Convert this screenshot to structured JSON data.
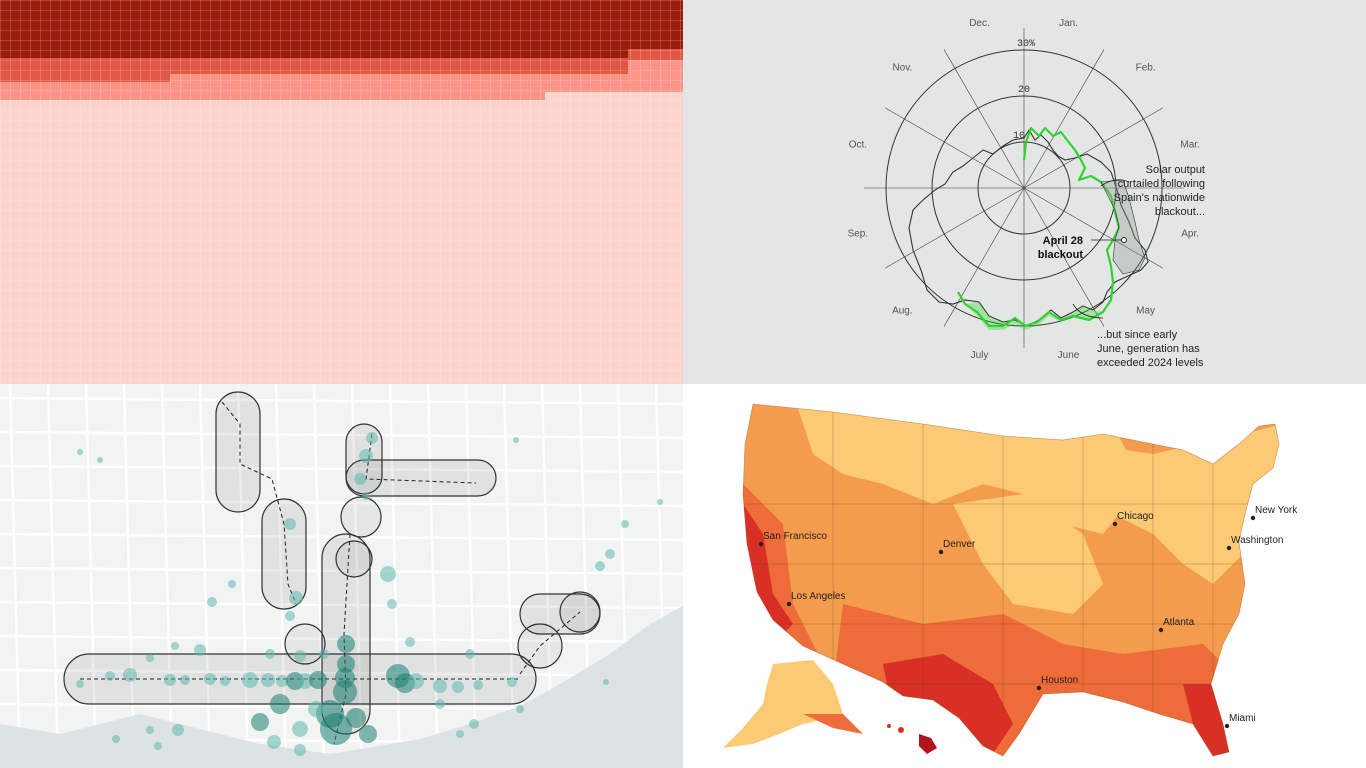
{
  "polar": {
    "months": [
      "Jan.",
      "Feb.",
      "Mar.",
      "Apr.",
      "May",
      "June",
      "July",
      "Aug.",
      "Sep.",
      "Oct.",
      "Nov.",
      "Dec."
    ],
    "rings": [
      "10",
      "20",
      "30%"
    ],
    "annotation_curtailed": [
      "Solar output",
      "curtailed following",
      "Spain's nationwide",
      "blackout..."
    ],
    "annotation_blackout": [
      "April 28",
      "blackout"
    ],
    "annotation_exceeded": [
      "...but since early",
      "June, generation has",
      "exceeded 2024 levels"
    ],
    "colors": {
      "current": "#2fd42f",
      "previous": "#333333",
      "background": "#e4e5e5"
    }
  },
  "grid_chart": {
    "colors": {
      "dark": "#9a1c0b",
      "mid": "#e05845",
      "light": "#fb9486",
      "pale": "#ffd3cd"
    }
  },
  "transit": {
    "colors": {
      "dot": "#5fb8ad",
      "dot_dark": "#17806f",
      "water": "#dde3e5"
    }
  },
  "map": {
    "cities": [
      "Chicago",
      "New York",
      "San Francisco",
      "Denver",
      "Washington",
      "Los Angeles",
      "Atlanta",
      "Houston",
      "Miami"
    ],
    "colors": {
      "palest": "#fde9a4",
      "pale": "#fcca74",
      "mid": "#f49c4e",
      "warm": "#ee6b3a",
      "hot": "#d93026",
      "hottest": "#b3131b"
    }
  }
}
